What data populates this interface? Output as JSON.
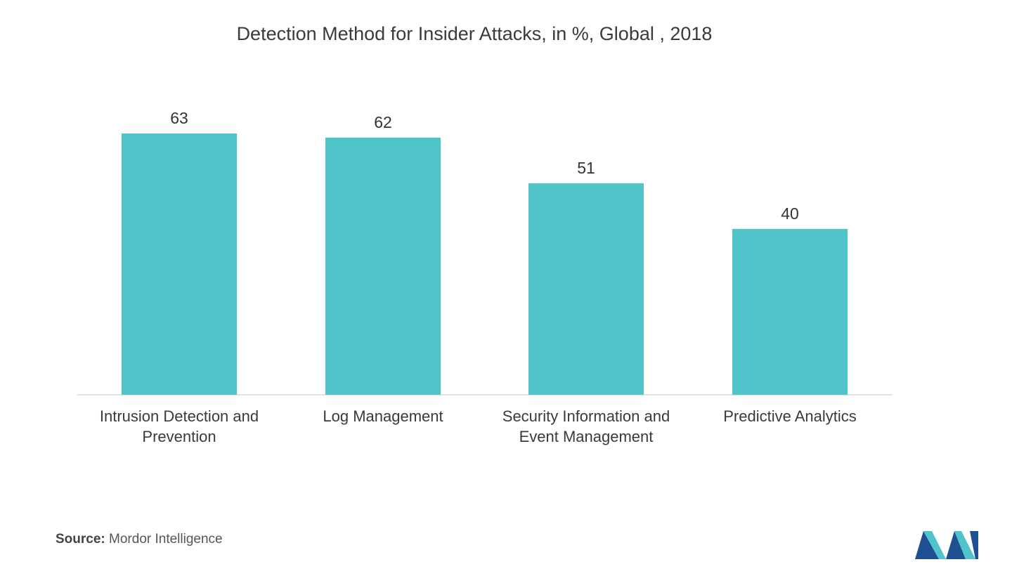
{
  "chart_data": {
    "type": "bar",
    "title": "Detection Method for Insider Attacks, in %, Global , 2018",
    "categories": [
      "Intrusion Detection and\nPrevention",
      "Log Management",
      "Security Information and\nEvent Management",
      "Predictive Analytics"
    ],
    "values": [
      63,
      62,
      51,
      40
    ],
    "value_labels": [
      "63",
      "62",
      "51",
      "40"
    ],
    "xlabel": "",
    "ylabel": "",
    "ylim": [
      0,
      63
    ],
    "grid": false,
    "bar_color": "#50c4c9",
    "axis_color": "#d9d9d9"
  },
  "footer": {
    "source_prefix": "Source:",
    "source_text": " Mordor Intelligence"
  },
  "logo": {
    "icon": "mordor-intelligence-logo-icon",
    "colors": [
      "#1d4f91",
      "#50c4c9"
    ]
  }
}
